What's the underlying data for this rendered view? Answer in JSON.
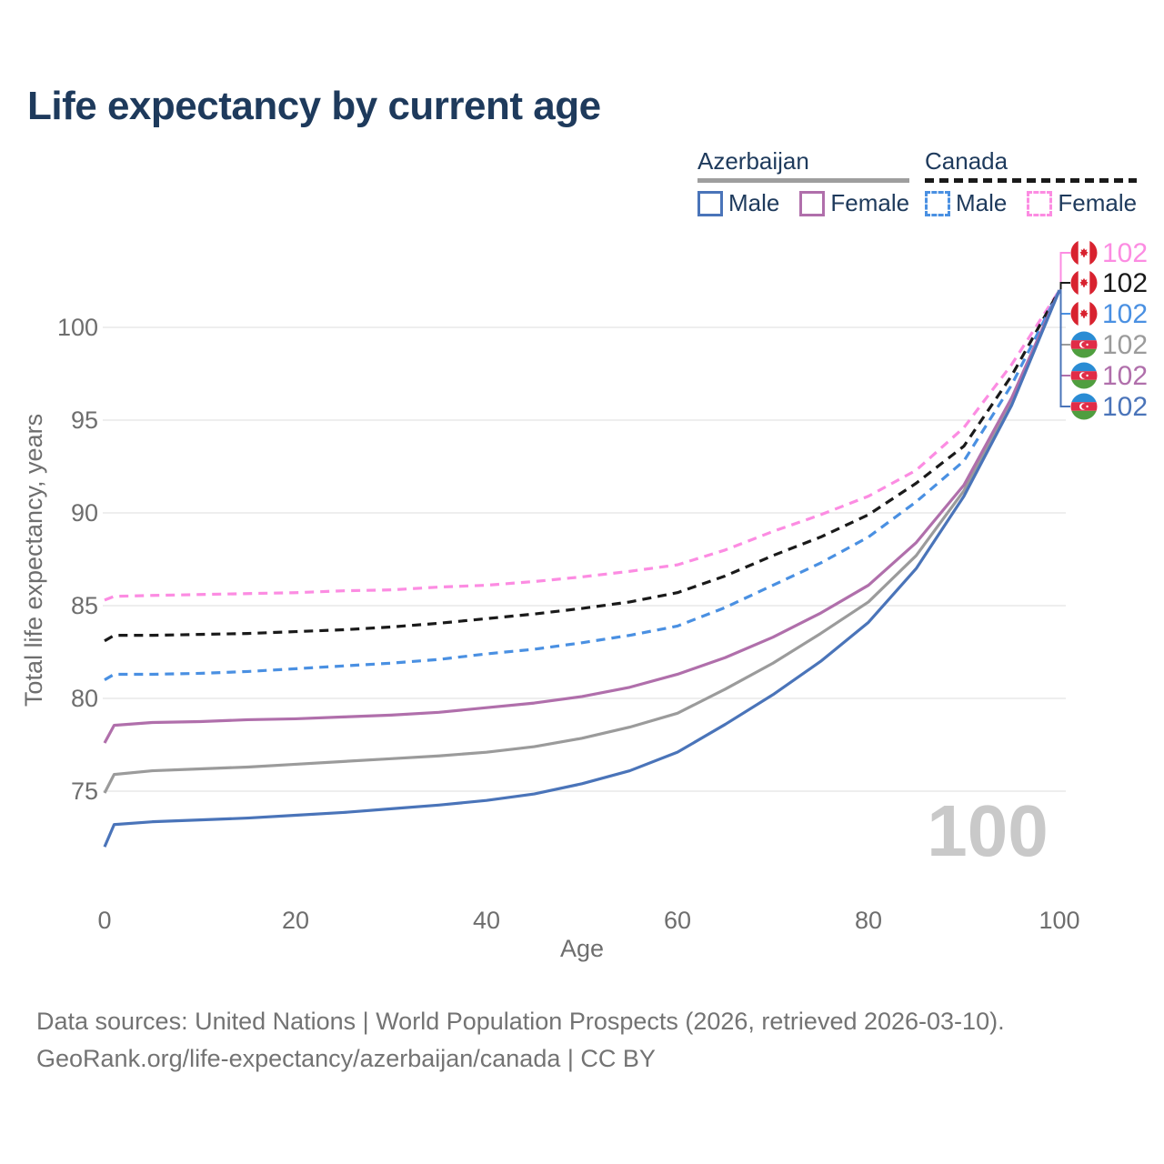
{
  "title": "Life expectancy by current age",
  "legend": {
    "groups": [
      {
        "label": "Azerbaijan",
        "underline_color": "#9e9e9e",
        "underline_style": "solid",
        "items": [
          {
            "label": "Male",
            "color": "#4a74b9",
            "dashed": false
          },
          {
            "label": "Female",
            "color": "#b06fab",
            "dashed": false
          }
        ]
      },
      {
        "label": "Canada",
        "underline_color": "#1a1a1a",
        "underline_style": "dashed",
        "items": [
          {
            "label": "Male",
            "color": "#4a90e2",
            "dashed": true
          },
          {
            "label": "Female",
            "color": "#fc8ce2",
            "dashed": true
          }
        ]
      }
    ]
  },
  "chart_data": {
    "type": "line",
    "title": "Life expectancy by current age",
    "xlabel": "Age",
    "ylabel": "Total life expectancy, years",
    "xlim": [
      0,
      100
    ],
    "ylim": [
      71.5,
      103.5
    ],
    "x_ticks": [
      0,
      20,
      40,
      60,
      80,
      100
    ],
    "y_ticks": [
      75,
      80,
      85,
      90,
      95,
      100
    ],
    "grid": "horizontal",
    "legend_position": "top-right",
    "watermark": "100",
    "x": [
      0,
      1,
      5,
      10,
      15,
      20,
      25,
      30,
      35,
      40,
      45,
      50,
      55,
      60,
      65,
      70,
      75,
      80,
      85,
      90,
      95,
      100
    ],
    "series": [
      {
        "name": "Canada Female",
        "country": "Canada",
        "sex": "Female",
        "color": "#fc8ce2",
        "dash": true,
        "flag": "canada-flag-icon",
        "end_label": "102",
        "values": [
          85.3,
          85.5,
          85.55,
          85.6,
          85.65,
          85.7,
          85.8,
          85.85,
          86.0,
          86.1,
          86.3,
          86.55,
          86.85,
          87.2,
          88.0,
          89.0,
          89.9,
          90.9,
          92.3,
          94.6,
          98.0,
          102
        ]
      },
      {
        "name": "Canada",
        "country": "Canada",
        "sex": "All",
        "color": "#1a1a1a",
        "dash": true,
        "flag": "canada-flag-icon",
        "end_label": "102",
        "values": [
          83.1,
          83.4,
          83.4,
          83.45,
          83.5,
          83.6,
          83.7,
          83.85,
          84.05,
          84.3,
          84.55,
          84.85,
          85.2,
          85.7,
          86.6,
          87.7,
          88.7,
          89.9,
          91.6,
          93.6,
          97.4,
          102
        ]
      },
      {
        "name": "Canada Male",
        "country": "Canada",
        "sex": "Male",
        "color": "#4a90e2",
        "dash": true,
        "flag": "canada-flag-icon",
        "end_label": "102",
        "values": [
          81.0,
          81.3,
          81.3,
          81.35,
          81.45,
          81.6,
          81.75,
          81.9,
          82.1,
          82.4,
          82.65,
          83.0,
          83.4,
          83.9,
          84.9,
          86.1,
          87.3,
          88.7,
          90.6,
          92.8,
          96.9,
          102
        ]
      },
      {
        "name": "Azerbaijan",
        "country": "Azerbaijan",
        "sex": "All",
        "color": "#9b9b9b",
        "dash": false,
        "flag": "azerbaijan-flag-icon",
        "end_label": "102",
        "values": [
          74.9,
          75.9,
          76.1,
          76.2,
          76.3,
          76.45,
          76.6,
          76.75,
          76.9,
          77.1,
          77.4,
          77.85,
          78.45,
          79.2,
          80.5,
          81.9,
          83.5,
          85.2,
          87.7,
          91.2,
          96.0,
          102
        ]
      },
      {
        "name": "Azerbaijan Female",
        "country": "Azerbaijan",
        "sex": "Female",
        "color": "#b06fab",
        "dash": false,
        "flag": "azerbaijan-flag-icon",
        "end_label": "102",
        "values": [
          77.6,
          78.55,
          78.7,
          78.75,
          78.85,
          78.9,
          79.0,
          79.1,
          79.25,
          79.5,
          79.75,
          80.1,
          80.6,
          81.3,
          82.2,
          83.3,
          84.6,
          86.1,
          88.4,
          91.5,
          96.2,
          102
        ]
      },
      {
        "name": "Azerbaijan Male",
        "country": "Azerbaijan",
        "sex": "Male",
        "color": "#4a74b9",
        "dash": false,
        "flag": "azerbaijan-flag-icon",
        "end_label": "102",
        "values": [
          72.0,
          73.2,
          73.35,
          73.45,
          73.55,
          73.7,
          73.85,
          74.05,
          74.25,
          74.5,
          74.85,
          75.4,
          76.1,
          77.1,
          78.6,
          80.2,
          82.0,
          84.1,
          87.0,
          90.9,
          95.8,
          102
        ]
      }
    ]
  },
  "footer": {
    "line1": "Data sources: United Nations | World Population Prospects (2026, retrieved 2026-03-10).",
    "line2": "GeoRank.org/life-expectancy/azerbaijan/canada | CC BY"
  }
}
